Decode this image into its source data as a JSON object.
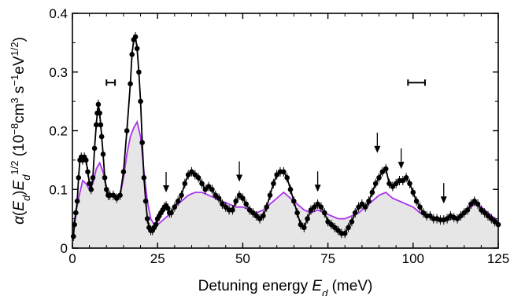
{
  "chart_data": {
    "type": "line",
    "xlabel": "Detuning energy E_d (meV)",
    "ylabel": "α(E_d)E_d^1/2 (10^−8cm^3 s^−1eV^1/2)",
    "xlim": [
      0,
      125
    ],
    "ylim": [
      0,
      0.4
    ],
    "x_ticks": [
      0,
      25,
      50,
      75,
      100,
      125
    ],
    "x_tick_labels": [
      "0",
      "25",
      "50",
      "75",
      "100",
      "125"
    ],
    "y_ticks": [
      0,
      0.1,
      0.2,
      0.3,
      0.4
    ],
    "y_tick_labels": [
      "0",
      "0.1",
      "0.2",
      "0.3",
      "0.4"
    ],
    "grid": false,
    "series": [
      {
        "style": "black line with filled circle markers and error bars",
        "color": "#000000",
        "x": [
          0.3,
          0.6,
          1,
          1.4,
          1.8,
          2.2,
          2.6,
          3,
          3.5,
          4,
          4.5,
          5,
          5.5,
          6,
          6.5,
          7,
          7.3,
          7.6,
          8,
          8.3,
          8.6,
          9,
          9.5,
          10,
          10.5,
          11,
          12,
          13,
          14,
          15,
          16,
          17,
          17.5,
          18,
          18.5,
          19,
          19.5,
          20,
          20.5,
          21,
          21.5,
          22,
          22.5,
          23,
          23.5,
          24,
          24.5,
          25,
          25.5,
          26,
          26.5,
          27,
          27.5,
          28,
          28.5,
          29,
          30,
          31,
          32,
          33,
          34,
          35,
          36,
          37,
          38,
          39,
          40,
          41,
          42,
          43,
          44,
          45,
          46,
          47,
          48,
          49,
          50,
          51,
          52,
          53,
          54,
          55,
          56,
          57,
          58,
          59,
          60,
          61,
          62,
          63,
          64,
          65,
          66,
          67,
          68,
          69,
          70,
          71,
          72,
          73,
          74,
          75,
          76,
          77,
          78,
          79,
          80,
          81,
          82,
          83,
          84,
          85,
          86,
          87,
          88,
          89,
          90,
          91,
          92,
          93,
          94,
          95,
          96,
          97,
          98,
          99,
          100,
          101,
          102,
          103,
          104,
          105,
          106,
          107,
          108,
          109,
          110,
          111,
          112,
          113,
          114,
          115,
          116,
          117,
          118,
          119,
          120,
          121,
          122,
          123,
          124,
          125
        ],
        "y": [
          0.02,
          0.04,
          0.06,
          0.08,
          0.12,
          0.15,
          0.155,
          0.15,
          0.155,
          0.15,
          0.13,
          0.11,
          0.1,
          0.12,
          0.17,
          0.21,
          0.23,
          0.245,
          0.23,
          0.21,
          0.19,
          0.16,
          0.12,
          0.1,
          0.09,
          0.09,
          0.09,
          0.085,
          0.09,
          0.13,
          0.2,
          0.28,
          0.33,
          0.355,
          0.36,
          0.34,
          0.3,
          0.25,
          0.18,
          0.12,
          0.08,
          0.05,
          0.035,
          0.03,
          0.03,
          0.035,
          0.04,
          0.05,
          0.055,
          0.06,
          0.065,
          0.07,
          0.072,
          0.068,
          0.06,
          0.06,
          0.07,
          0.08,
          0.09,
          0.11,
          0.125,
          0.13,
          0.125,
          0.12,
          0.11,
          0.1,
          0.105,
          0.1,
          0.09,
          0.085,
          0.075,
          0.07,
          0.065,
          0.065,
          0.08,
          0.09,
          0.085,
          0.075,
          0.065,
          0.06,
          0.055,
          0.05,
          0.055,
          0.07,
          0.09,
          0.11,
          0.125,
          0.13,
          0.13,
          0.12,
          0.1,
          0.08,
          0.06,
          0.04,
          0.035,
          0.05,
          0.065,
          0.07,
          0.075,
          0.07,
          0.06,
          0.045,
          0.04,
          0.035,
          0.03,
          0.025,
          0.025,
          0.035,
          0.045,
          0.06,
          0.07,
          0.075,
          0.07,
          0.08,
          0.095,
          0.11,
          0.12,
          0.13,
          0.135,
          0.11,
          0.105,
          0.11,
          0.115,
          0.115,
          0.12,
          0.11,
          0.095,
          0.08,
          0.07,
          0.06,
          0.055,
          0.055,
          0.05,
          0.05,
          0.048,
          0.048,
          0.05,
          0.055,
          0.052,
          0.05,
          0.055,
          0.06,
          0.065,
          0.075,
          0.08,
          0.075,
          0.065,
          0.06,
          0.055,
          0.05,
          0.045,
          0.04
        ]
      },
      {
        "style": "purple line with light grey fill beneath",
        "color": "#aa33ee",
        "x": [
          0,
          1,
          2,
          3,
          4,
          5,
          6,
          7,
          8,
          9,
          10,
          11,
          12,
          13,
          14,
          15,
          16,
          17,
          18,
          19,
          20,
          21,
          22,
          23,
          24,
          25,
          26,
          27,
          28,
          29,
          30,
          32,
          34,
          36,
          38,
          40,
          42,
          44,
          46,
          48,
          50,
          52,
          54,
          56,
          58,
          60,
          62,
          64,
          66,
          68,
          70,
          72,
          74,
          76,
          78,
          80,
          82,
          84,
          86,
          88,
          90,
          92,
          94,
          96,
          98,
          100,
          102,
          104,
          106,
          108,
          110,
          112,
          114,
          116,
          118,
          120,
          122,
          124,
          125
        ],
        "y": [
          0.03,
          0.06,
          0.09,
          0.115,
          0.11,
          0.1,
          0.11,
          0.135,
          0.145,
          0.13,
          0.1,
          0.09,
          0.09,
          0.09,
          0.09,
          0.12,
          0.16,
          0.19,
          0.205,
          0.215,
          0.19,
          0.13,
          0.08,
          0.05,
          0.04,
          0.04,
          0.045,
          0.05,
          0.055,
          0.06,
          0.07,
          0.08,
          0.09,
          0.095,
          0.095,
          0.09,
          0.085,
          0.08,
          0.075,
          0.07,
          0.07,
          0.065,
          0.06,
          0.065,
          0.075,
          0.085,
          0.095,
          0.085,
          0.075,
          0.065,
          0.06,
          0.065,
          0.06,
          0.055,
          0.05,
          0.05,
          0.055,
          0.06,
          0.07,
          0.08,
          0.09,
          0.095,
          0.085,
          0.08,
          0.075,
          0.07,
          0.06,
          0.055,
          0.05,
          0.05,
          0.048,
          0.05,
          0.055,
          0.065,
          0.075,
          0.07,
          0.06,
          0.05,
          0.045
        ]
      }
    ],
    "arrows": [
      {
        "x": 27.5,
        "y_tip": 0.095
      },
      {
        "x": 49,
        "y_tip": 0.113
      },
      {
        "x": 72,
        "y_tip": 0.096
      },
      {
        "x": 89.5,
        "y_tip": 0.162
      },
      {
        "x": 96.5,
        "y_tip": 0.135
      },
      {
        "x": 109,
        "y_tip": 0.076
      }
    ],
    "error_bar_markers": [
      {
        "x1": 10,
        "x2": 12.5,
        "y": 0.282
      },
      {
        "x1": 98.5,
        "x2": 103.5,
        "y": 0.282
      }
    ]
  }
}
